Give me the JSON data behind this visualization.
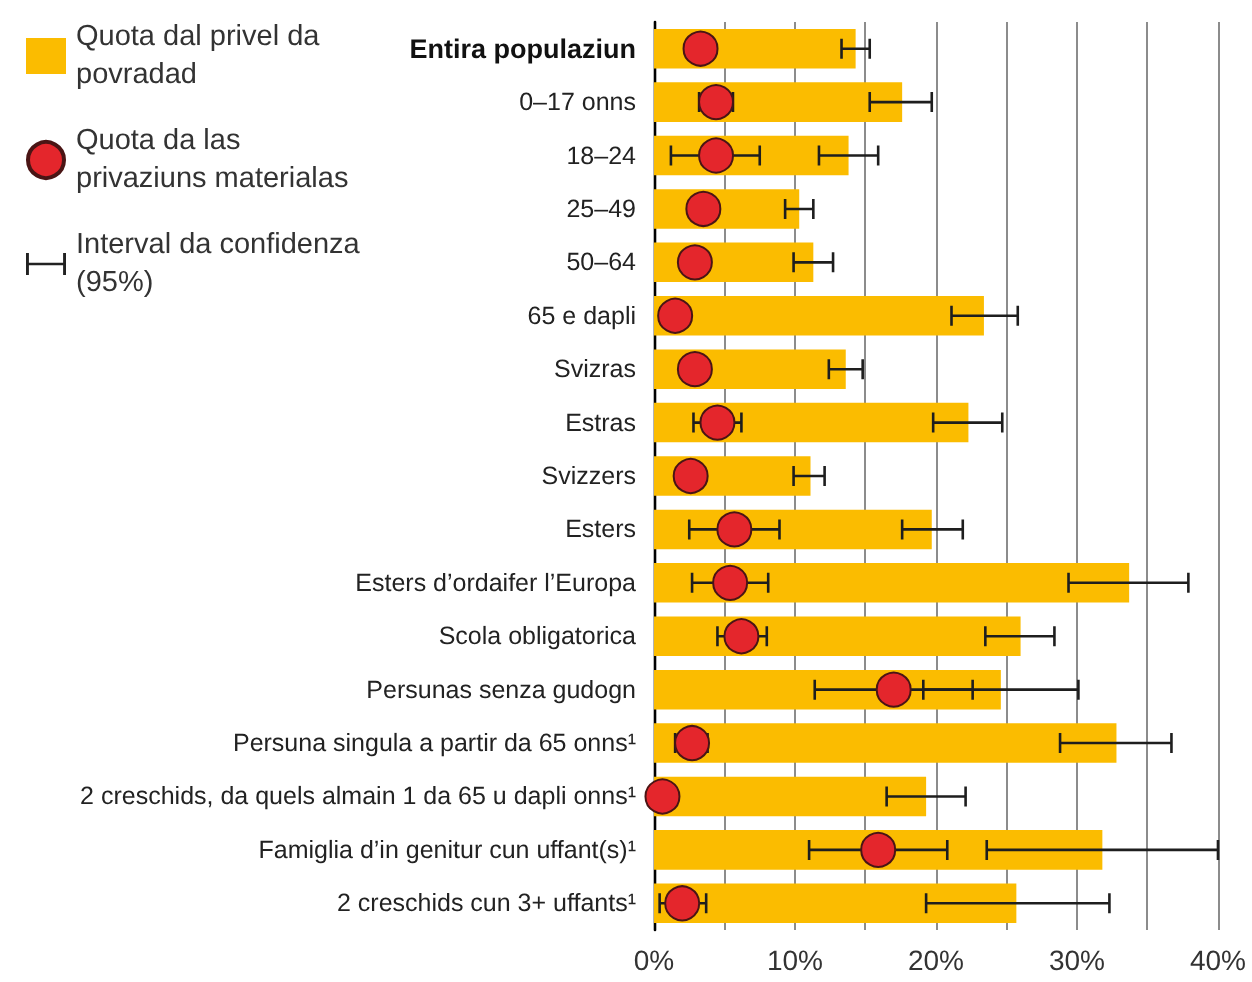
{
  "chart_data": {
    "type": "bar",
    "orientation": "horizontal",
    "categories": [
      "Entira populaziun",
      "0–17 onns",
      "18–24",
      "25–49",
      "50–64",
      "65 e dapli",
      "Svizras",
      "Estras",
      "Svizzers",
      "Esters",
      "Esters d’ordaifer l’Europa",
      "Scola obligatorica",
      "Persunas senza gudogn",
      "Persuna singula a partir da 65 onns¹",
      "2 creschids, da quels almain 1 da 65 u dapli onns¹",
      "Famiglia d’in genitur cun uffant(s)¹",
      "2 creschids cun 3+ uffants¹"
    ],
    "series": [
      {
        "name": "Quota dal privel da povradad",
        "type": "bar",
        "color": "#fbbc00",
        "values": [
          14.3,
          17.6,
          13.8,
          10.3,
          11.3,
          23.4,
          13.6,
          22.3,
          11.1,
          19.7,
          33.7,
          26.0,
          24.6,
          32.8,
          19.3,
          31.8,
          25.7
        ],
        "errors": [
          [
            13.3,
            15.3
          ],
          [
            15.3,
            19.7
          ],
          [
            11.7,
            15.9
          ],
          [
            9.3,
            11.3
          ],
          [
            9.9,
            12.7
          ],
          [
            21.1,
            25.8
          ],
          [
            12.4,
            14.8
          ],
          [
            19.8,
            24.7
          ],
          [
            9.9,
            12.1
          ],
          [
            17.6,
            21.9
          ],
          [
            29.4,
            37.9
          ],
          [
            23.5,
            28.4
          ],
          [
            19.1,
            30.1
          ],
          [
            28.8,
            36.7
          ],
          [
            16.5,
            22.1
          ],
          [
            23.6,
            40.0
          ],
          [
            19.3,
            32.3
          ]
        ]
      },
      {
        "name": "Quota da las privaziuns materialas",
        "type": "scatter",
        "color": "#e4262c",
        "values": [
          3.3,
          4.4,
          4.4,
          3.5,
          2.9,
          1.5,
          2.9,
          4.5,
          2.6,
          5.7,
          5.4,
          6.2,
          17.0,
          2.7,
          0.6,
          15.9,
          2.0
        ],
        "errors": [
          null,
          [
            3.2,
            5.6
          ],
          [
            1.2,
            7.5
          ],
          null,
          null,
          null,
          null,
          [
            2.8,
            6.2
          ],
          null,
          [
            2.5,
            8.9
          ],
          [
            2.7,
            8.1
          ],
          [
            4.5,
            8.0
          ],
          [
            11.4,
            22.6
          ],
          [
            1.5,
            3.8
          ],
          null,
          [
            11.0,
            20.8
          ],
          [
            0.4,
            3.7
          ]
        ]
      }
    ],
    "xlim": [
      0,
      40
    ],
    "xticks": [
      {
        "value": 0,
        "label": "0%"
      },
      {
        "value": 5,
        "label": null
      },
      {
        "value": 10,
        "label": "10%"
      },
      {
        "value": 15,
        "label": null
      },
      {
        "value": 20,
        "label": "20%"
      },
      {
        "value": 25,
        "label": null
      },
      {
        "value": 30,
        "label": "30%"
      },
      {
        "value": 35,
        "label": null
      },
      {
        "value": 40,
        "label": "40%"
      }
    ],
    "grid": "x",
    "legend": "top left",
    "marker": "circle",
    "annotations": [
      "Interval da confidenza (95%)"
    ]
  }
}
